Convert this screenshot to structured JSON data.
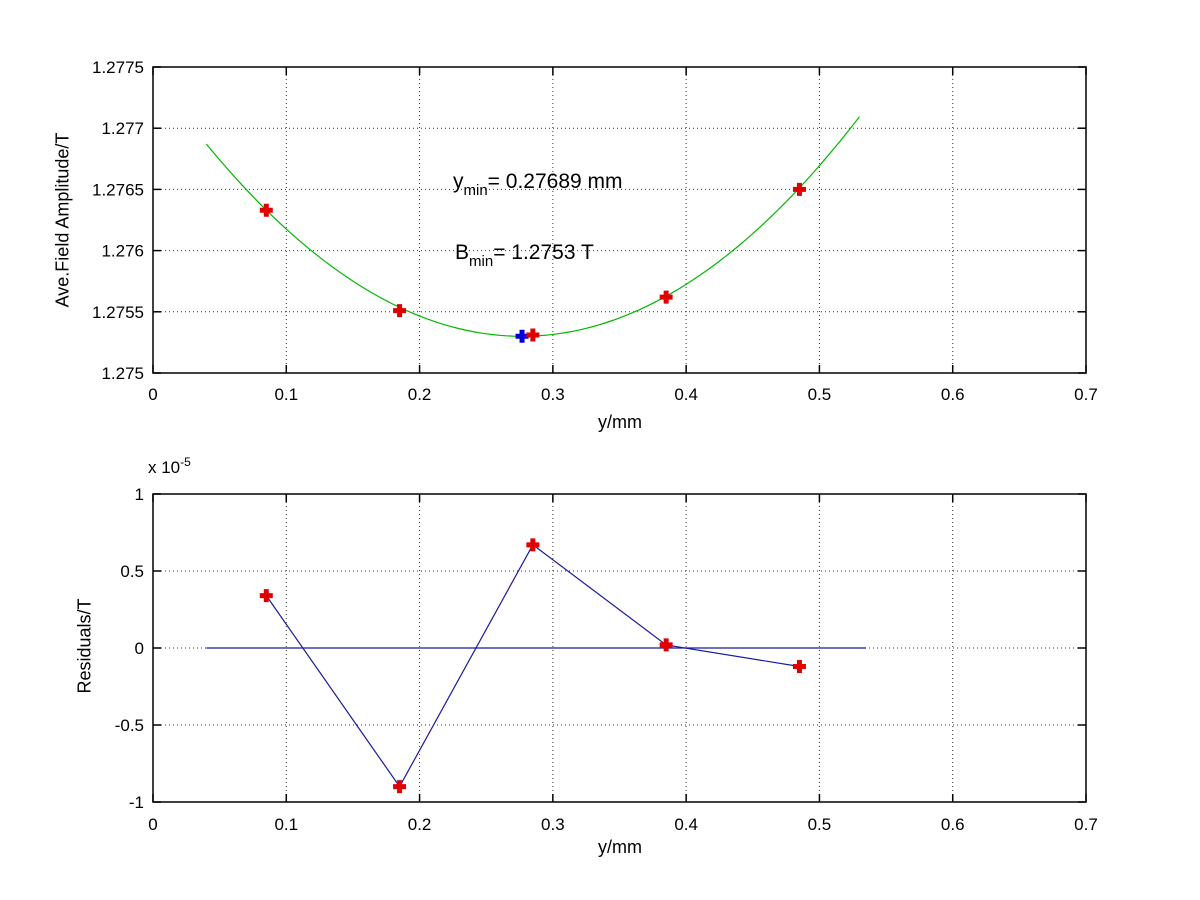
{
  "figure": {
    "background": "#ffffff",
    "grid_color": "#333333",
    "axis_color": "#000000"
  },
  "chart_data": [
    {
      "type": "scatter",
      "title": "",
      "xlabel": "y/mm",
      "ylabel": "Ave.Field Amplitude/T",
      "xlim": [
        0,
        0.7
      ],
      "ylim": [
        1.275,
        1.2775
      ],
      "grid": true,
      "xticks": [
        "0",
        "0.1",
        "0.2",
        "0.3",
        "0.4",
        "0.5",
        "0.6",
        "0.7"
      ],
      "yticks": [
        "1.275",
        "1.2755",
        "1.276",
        "1.2765",
        "1.277",
        "1.2775"
      ],
      "points": {
        "x": [
          0.085,
          0.185,
          0.285,
          0.385,
          0.485
        ],
        "y": [
          1.27633,
          1.27551,
          1.27531,
          1.27562,
          1.2765
        ],
        "marker": "plus",
        "color": "#e10000"
      },
      "min_point": {
        "x": 0.27689,
        "y": 1.2753,
        "marker": "plus",
        "color": "#0000dd"
      },
      "fit_curve": {
        "shape": "parabola",
        "vertex_x": 0.27689,
        "vertex_y": 1.2753,
        "coeff": 0.028,
        "x_start": 0.04,
        "x_end": 0.53,
        "color": "#00b800"
      },
      "annotations": [
        {
          "base": "y",
          "sub": "min",
          "rest": "= 0.27689 mm"
        },
        {
          "base": "B",
          "sub": "min",
          "rest": "= 1.2753 T"
        }
      ]
    },
    {
      "type": "line",
      "title": "",
      "xlabel": "y/mm",
      "ylabel": "Residuals/T",
      "y_multiplier": {
        "base": "x 10",
        "exp": "-5"
      },
      "xlim": [
        0,
        0.7
      ],
      "ylim_scaled": [
        -1,
        1
      ],
      "grid": true,
      "xticks": [
        "0",
        "0.1",
        "0.2",
        "0.3",
        "0.4",
        "0.5",
        "0.6",
        "0.7"
      ],
      "yticks": [
        "-1",
        "-0.5",
        "0",
        "0.5",
        "1"
      ],
      "points": {
        "x": [
          0.085,
          0.185,
          0.285,
          0.385,
          0.485
        ],
        "y_scaled": [
          0.34,
          -0.9,
          0.67,
          0.02,
          -0.12
        ],
        "marker": "plus",
        "color": "#e10000"
      },
      "line_color": "#1a1a9e",
      "zero_line": {
        "x_start": 0.04,
        "x_end": 0.535,
        "color": "#1a1a9e"
      }
    }
  ]
}
